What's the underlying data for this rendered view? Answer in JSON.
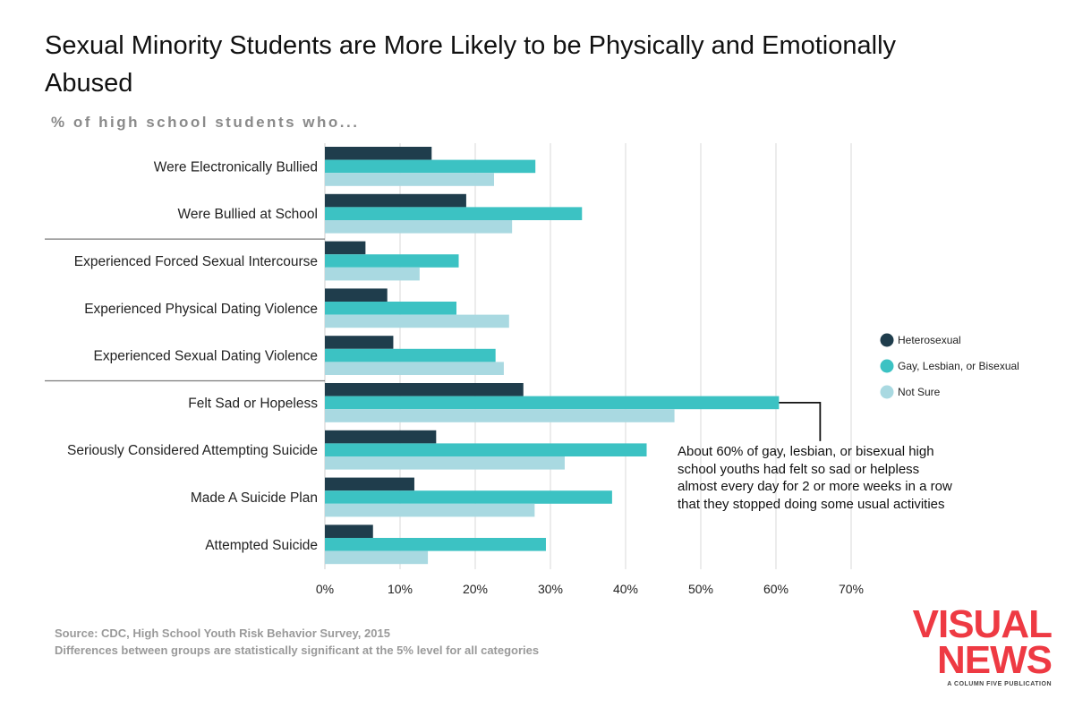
{
  "title": "Sexual Minority Students are More Likely to be Physically and Emotionally Abused",
  "subtitle": "% of high school students who...",
  "chart_data": {
    "type": "bar",
    "orientation": "horizontal",
    "categories": [
      "Were Electronically Bullied",
      "Were Bullied at School",
      "Experienced Forced Sexual Intercourse",
      "Experienced Physical Dating Violence",
      "Experienced Sexual Dating Violence",
      "Felt Sad or Hopeless",
      "Seriously Considered Attempting Suicide",
      "Made A Suicide Plan",
      "Attempted Suicide"
    ],
    "series": [
      {
        "name": "Heterosexual",
        "color": "#1f3d4c",
        "values": [
          14.2,
          18.8,
          5.4,
          8.3,
          9.1,
          26.4,
          14.8,
          11.9,
          6.4
        ]
      },
      {
        "name": "Gay, Lesbian, or Bisexual",
        "color": "#3cc2c3",
        "values": [
          28.0,
          34.2,
          17.8,
          17.5,
          22.7,
          60.4,
          42.8,
          38.2,
          29.4
        ]
      },
      {
        "name": "Not Sure",
        "color": "#a9d9e1",
        "values": [
          22.5,
          24.9,
          12.6,
          24.5,
          23.8,
          46.5,
          31.9,
          27.9,
          13.7
        ]
      }
    ],
    "group_separators_after": [
      1,
      4
    ],
    "xlim": [
      0,
      70
    ],
    "xticks": [
      0,
      10,
      20,
      30,
      40,
      50,
      60,
      70
    ],
    "xtick_labels": [
      "0%",
      "10%",
      "20%",
      "30%",
      "40%",
      "50%",
      "60%",
      "70%"
    ],
    "grid": true,
    "legend_position": "right",
    "annotation": {
      "category": "Felt Sad or Hopeless",
      "series": "Gay, Lesbian, or Bisexual",
      "text": "About 60% of gay, lesbian, or bisexual high school youths had felt so sad or helpless almost every day for 2 or more weeks in a row that they stopped doing some usual activities"
    }
  },
  "footer": {
    "source": "Source: CDC, High School Youth Risk Behavior Survey, 2015",
    "note": "Differences between groups are statistically significant at the 5% level for all categories"
  },
  "logo": {
    "line1": "VISUAL",
    "line2": "NEWS",
    "tagline": "A COLUMN FIVE PUBLICATION"
  }
}
